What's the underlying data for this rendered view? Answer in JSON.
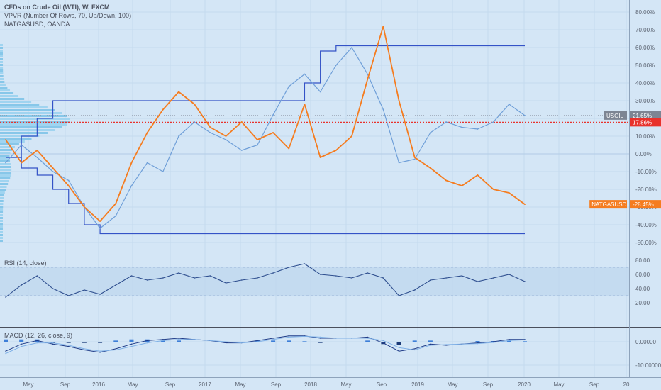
{
  "header": {
    "title": "CFDs on Crude Oil (WTI), W, FXCM",
    "indicator": "VPVR (Number Of Rows, 70, Up/Down, 100)",
    "compare": "NATGASUSD, OANDA"
  },
  "badges": [
    {
      "label": "USOIL",
      "value": "21.65%",
      "color": "#7d8593"
    },
    {
      "label": "",
      "value": "17.86%",
      "color": "#e8322c"
    },
    {
      "label": "NATGASUSD",
      "value": "-28.45%",
      "color": "#f57c1f"
    }
  ],
  "rsi_panel": {
    "label": "RSI (14, close)"
  },
  "macd_panel": {
    "label": "MACD (12, 26, close, 9)"
  },
  "colors": {
    "background": "#d4e6f6",
    "usoil_line": "#6f9fd8",
    "natgas_line": "#f57c1f",
    "stepline": "#3453c7",
    "level_line": "#e8322c",
    "rsi_band": "#bed5ee"
  },
  "chart_data": [
    {
      "type": "line",
      "title": "CFDs on Crude Oil (WTI), W, FXCM",
      "x": [
        "2015-01",
        "2015-03",
        "2015-05",
        "2015-07",
        "2015-09",
        "2015-11",
        "2016-01",
        "2016-02",
        "2016-04",
        "2016-06",
        "2016-08",
        "2016-10",
        "2016-12",
        "2017-02",
        "2017-04",
        "2017-06",
        "2017-08",
        "2017-10",
        "2017-12",
        "2018-01",
        "2018-03",
        "2018-05",
        "2018-07",
        "2018-09",
        "2018-10",
        "2018-11",
        "2018-12",
        "2019-02",
        "2019-04",
        "2019-06",
        "2019-08",
        "2019-10",
        "2019-12",
        "2020-01"
      ],
      "xticks": [
        "May",
        "Sep",
        "2016",
        "May",
        "Sep",
        "2017",
        "May",
        "Sep",
        "2018",
        "May",
        "Sep",
        "2019",
        "May",
        "Sep",
        "2020",
        "May",
        "Sep",
        "20"
      ],
      "yticks": [
        "80.00%",
        "70.00%",
        "60.00%",
        "50.00%",
        "40.00%",
        "30.00%",
        "20.00%",
        "10.00%",
        "0.00%",
        "-10.00%",
        "-20.00%",
        "-30.00%",
        "-40.00%",
        "-50.00%"
      ],
      "ylim": [
        -52,
        84
      ],
      "grid": true,
      "series": [
        {
          "name": "USOIL",
          "color": "#6f9fd8",
          "values": [
            -5,
            5,
            -2,
            -10,
            -15,
            -30,
            -42,
            -35,
            -18,
            -5,
            -10,
            10,
            18,
            12,
            8,
            2,
            5,
            22,
            38,
            45,
            35,
            50,
            60,
            45,
            25,
            -5,
            -3,
            12,
            18,
            15,
            14,
            18,
            28,
            21.65
          ]
        },
        {
          "name": "NATGASUSD",
          "color": "#f57c1f",
          "values": [
            8,
            -5,
            2,
            -8,
            -18,
            -30,
            -38,
            -28,
            -5,
            12,
            25,
            35,
            28,
            15,
            10,
            18,
            8,
            12,
            3,
            28,
            -2,
            2,
            10,
            42,
            72,
            30,
            -2,
            -8,
            -15,
            -18,
            -12,
            -20,
            -22,
            -28.45
          ]
        }
      ],
      "reference_lines": [
        {
          "value": 17.86,
          "color": "#e8322c",
          "style": "dotted"
        }
      ],
      "step_series": {
        "color": "#3453c7",
        "upper": [
          -2,
          10,
          20,
          30,
          30,
          30,
          30,
          30,
          30,
          30,
          30,
          30,
          30,
          30,
          30,
          30,
          30,
          30,
          30,
          40,
          58,
          61,
          61,
          61,
          61,
          61,
          61,
          61,
          61,
          61,
          61,
          61,
          61,
          61
        ],
        "lower": [
          -2,
          -8,
          -12,
          -20,
          -28,
          -40,
          -45,
          -45,
          -45,
          -45,
          -45,
          -45,
          -45,
          -45,
          -45,
          -45,
          -45,
          -45,
          -45,
          -45,
          -45,
          -45,
          -45,
          -45,
          -45,
          -45,
          -45,
          -45,
          -45,
          -45,
          -45,
          -45,
          -45,
          -45
        ]
      }
    },
    {
      "type": "line",
      "title": "RSI (14, close)",
      "x": [
        "2015-01",
        "2015-03",
        "2015-05",
        "2015-07",
        "2015-09",
        "2015-11",
        "2016-01",
        "2016-02",
        "2016-04",
        "2016-06",
        "2016-08",
        "2016-10",
        "2016-12",
        "2017-02",
        "2017-04",
        "2017-06",
        "2017-08",
        "2017-10",
        "2017-12",
        "2018-01",
        "2018-03",
        "2018-05",
        "2018-07",
        "2018-09",
        "2018-10",
        "2018-11",
        "2018-12",
        "2019-02",
        "2019-04",
        "2019-06",
        "2019-08",
        "2019-10",
        "2019-12",
        "2020-01"
      ],
      "yticks": [
        "80.00",
        "60.00",
        "40.00",
        "20.00"
      ],
      "ylim": [
        15,
        85
      ],
      "band": [
        30,
        70
      ],
      "series": [
        {
          "name": "RSI",
          "values": [
            28,
            45,
            58,
            40,
            30,
            38,
            32,
            45,
            58,
            52,
            55,
            62,
            55,
            58,
            48,
            52,
            55,
            62,
            70,
            75,
            60,
            58,
            55,
            62,
            55,
            30,
            38,
            52,
            55,
            58,
            50,
            55,
            60,
            50
          ]
        }
      ]
    },
    {
      "type": "bar",
      "title": "MACD (12, 26, close, 9)",
      "yticks": [
        "0.00000",
        "-10.00000"
      ],
      "ylim": [
        -12,
        3
      ],
      "series": [
        {
          "name": "MACD",
          "values": [
            -4,
            -1,
            0.5,
            -1,
            -2,
            -3.5,
            -4.5,
            -3,
            -1,
            0.5,
            1,
            1.5,
            1,
            0.5,
            -0.5,
            -0.5,
            0.5,
            1.5,
            2.5,
            2.5,
            1.5,
            1.5,
            1.5,
            2,
            -0.5,
            -4,
            -3,
            -1,
            -1.5,
            -1,
            -0.5,
            0,
            1,
            1
          ]
        },
        {
          "name": "Signal",
          "values": [
            -5,
            -2,
            -0.5,
            -0.5,
            -1.5,
            -3,
            -4,
            -3.5,
            -2,
            -0.5,
            0.5,
            1,
            1,
            0.5,
            0,
            -0.5,
            0,
            1,
            2,
            2.3,
            2,
            1.5,
            1.5,
            1.5,
            0.5,
            -2.5,
            -3.5,
            -1.5,
            -1.2,
            -1,
            -0.8,
            -0.3,
            0.5,
            0.8
          ]
        },
        {
          "name": "Histogram",
          "values": [
            1,
            1,
            1,
            -0.5,
            -0.5,
            -0.5,
            -0.5,
            0.5,
            1,
            1,
            0.5,
            0.5,
            0,
            0,
            -0.5,
            0,
            0.5,
            0.5,
            0.5,
            0.2,
            -0.5,
            0,
            0,
            0.5,
            -1,
            -1.5,
            0.5,
            0.5,
            -0.3,
            0,
            0.3,
            0.3,
            0.5,
            0.2
          ]
        }
      ]
    }
  ]
}
